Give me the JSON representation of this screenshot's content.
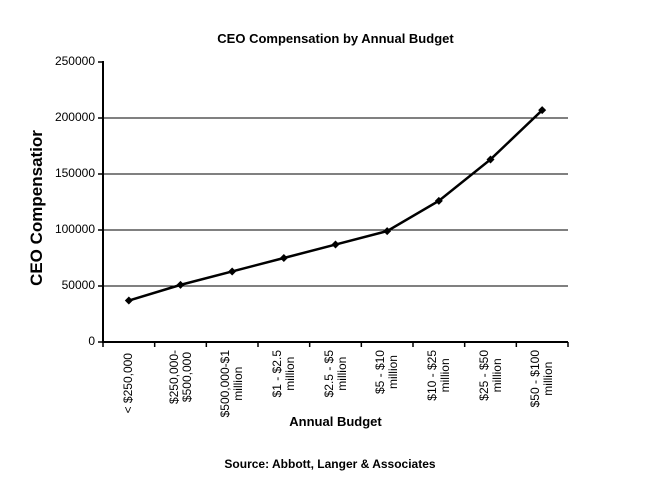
{
  "page": {
    "background": "#ffffff",
    "text_color": "#000000"
  },
  "chart_data": {
    "type": "line",
    "title": "CEO Compensation by Annual Budget",
    "xlabel": "Annual Budget",
    "ylabel": "CEO Compensatior",
    "source": "Source: Abbott, Langer & Associates",
    "categories": [
      "< $250,000",
      "$250,000-$500,000",
      "$500,000-$1 million",
      "$1 - $2.5 million",
      "$2.5 - $5 million",
      "$5 - $10 million",
      "$10 - $25 million",
      "$25 - $50 million",
      "$50 - $100 million"
    ],
    "categories_wrapped": [
      "< $250,000",
      "$250,000-\n$500,000",
      "$500,000-$1\nmillion",
      "$1 - $2.5\nmillion",
      "$2.5 - $5\nmillion",
      "$5 - $10\nmillion",
      "$10 - $25\nmillion",
      "$25 - $50\nmillion",
      "$50 - $100\nmillion"
    ],
    "series": [
      {
        "name": "CEO Compensation",
        "values": [
          37000,
          51000,
          63000,
          75000,
          87000,
          99000,
          126000,
          163000,
          207000
        ]
      }
    ],
    "ylim": [
      0,
      250000
    ],
    "yticks": [
      0,
      50000,
      100000,
      150000,
      200000,
      250000
    ],
    "grid": "horizontal-major-only",
    "legend": "none",
    "line_color": "#000000",
    "marker": "diamond",
    "marker_color": "#000000",
    "axis_color": "#000000",
    "gridline_color": "#000000"
  }
}
